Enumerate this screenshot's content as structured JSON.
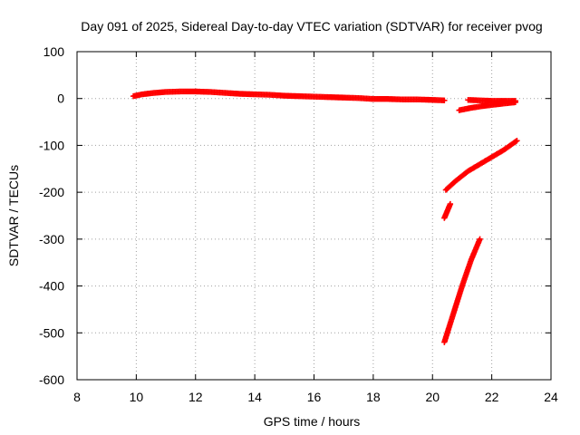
{
  "chart_data": {
    "type": "scatter",
    "title": "Day 091 of 2025, Sidereal Day-to-day VTEC variation (SDTVAR) for receiver pvog",
    "xlabel": "GPS time / hours",
    "ylabel": "SDTVAR / TECUs",
    "xlim": [
      8,
      24
    ],
    "ylim": [
      -600,
      100
    ],
    "xticks": [
      8,
      10,
      12,
      14,
      16,
      18,
      20,
      22,
      24
    ],
    "yticks": [
      100,
      0,
      -100,
      -200,
      -300,
      -400,
      -500,
      -600
    ],
    "grid": true,
    "marker": "plus",
    "color": "#ff0000",
    "series": [
      {
        "name": "main arc",
        "points": [
          [
            9.9,
            5
          ],
          [
            10.2,
            9
          ],
          [
            10.6,
            12
          ],
          [
            11.0,
            14
          ],
          [
            11.5,
            15
          ],
          [
            12.0,
            15
          ],
          [
            12.5,
            14
          ],
          [
            13.0,
            12
          ],
          [
            13.5,
            10
          ],
          [
            14.0,
            9
          ],
          [
            14.5,
            8
          ],
          [
            15.0,
            6
          ],
          [
            15.5,
            5
          ],
          [
            16.0,
            4
          ],
          [
            16.5,
            3
          ],
          [
            17.0,
            2
          ],
          [
            17.5,
            1
          ],
          [
            18.0,
            -1
          ],
          [
            18.5,
            -1
          ],
          [
            19.0,
            -2
          ],
          [
            19.5,
            -2
          ],
          [
            20.0,
            -3
          ],
          [
            20.4,
            -4
          ]
        ]
      },
      {
        "name": "late arc A",
        "points": [
          [
            21.2,
            -3
          ],
          [
            21.6,
            -4
          ],
          [
            22.0,
            -5
          ],
          [
            22.4,
            -5
          ],
          [
            22.8,
            -5
          ]
        ]
      },
      {
        "name": "late arc B",
        "points": [
          [
            20.9,
            -25
          ],
          [
            21.3,
            -20
          ],
          [
            21.7,
            -16
          ],
          [
            22.1,
            -13
          ],
          [
            22.5,
            -10
          ],
          [
            22.8,
            -8
          ]
        ]
      },
      {
        "name": "upper descending arc",
        "points": [
          [
            20.45,
            -195
          ],
          [
            20.8,
            -175
          ],
          [
            21.2,
            -155
          ],
          [
            21.6,
            -140
          ],
          [
            22.0,
            -125
          ],
          [
            22.4,
            -110
          ],
          [
            22.85,
            -90
          ]
        ]
      },
      {
        "name": "short segment",
        "points": [
          [
            20.4,
            -255
          ],
          [
            20.5,
            -240
          ],
          [
            20.6,
            -225
          ]
        ]
      },
      {
        "name": "steep segment",
        "points": [
          [
            20.4,
            -520
          ],
          [
            20.7,
            -460
          ],
          [
            21.0,
            -400
          ],
          [
            21.3,
            -345
          ],
          [
            21.6,
            -300
          ]
        ]
      }
    ]
  }
}
